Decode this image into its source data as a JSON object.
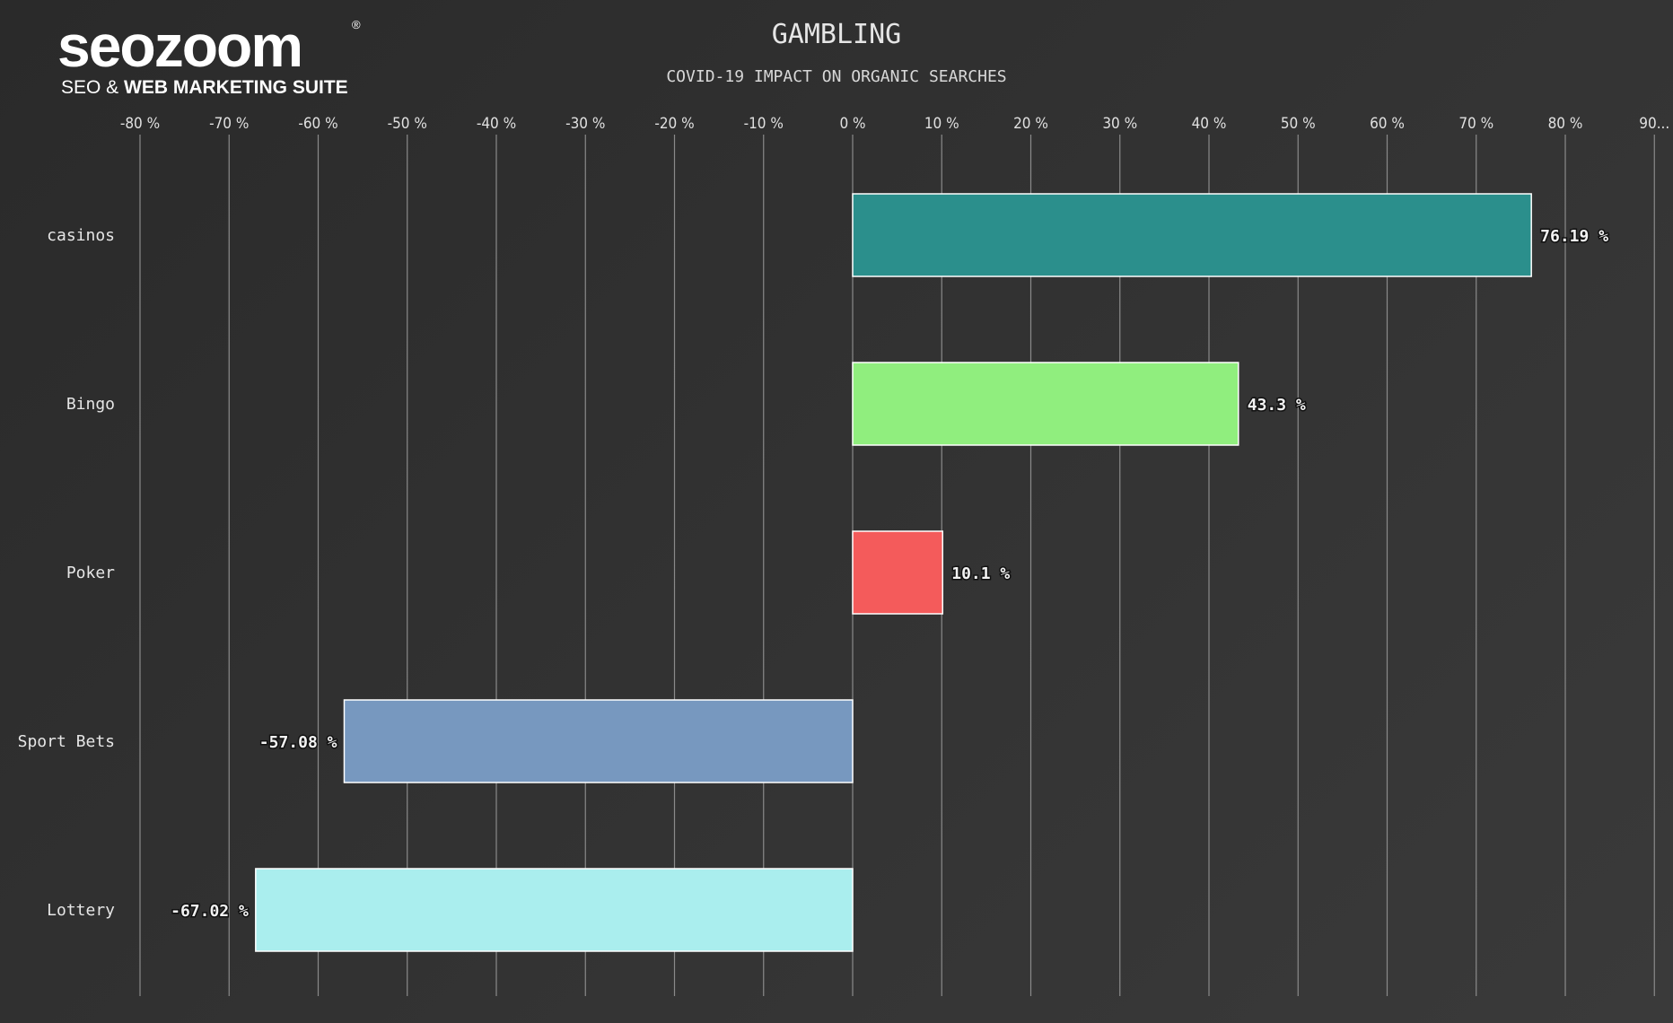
{
  "logo": {
    "brand": "seozoom",
    "registered": "®",
    "tagline_prefix": "SEO & ",
    "tagline_bold": "WEB MARKETING SUITE"
  },
  "chart_data": {
    "type": "bar",
    "orientation": "horizontal",
    "title": "GAMBLING",
    "subtitle": "COVID-19 IMPACT ON ORGANIC SEARCHES",
    "categories": [
      "casinos",
      "Bingo",
      "Poker",
      "Sport Bets",
      "Lottery"
    ],
    "values": [
      76.19,
      43.3,
      10.1,
      -57.08,
      -67.02
    ],
    "value_labels": [
      "76.19 %",
      "43.3 %",
      "10.1 %",
      "-57.08 %",
      "-67.02 %"
    ],
    "colors": [
      "#2b8f8c",
      "#90ee7e",
      "#f45b5b",
      "#7798bf",
      "#aaeeee"
    ],
    "xlim": [
      -80,
      90
    ],
    "x_ticks": [
      -80,
      -70,
      -60,
      -50,
      -40,
      -30,
      -20,
      -10,
      0,
      10,
      20,
      30,
      40,
      50,
      60,
      70,
      80,
      90
    ],
    "x_tick_labels": [
      "-80 %",
      "-70 %",
      "-60 %",
      "-50 %",
      "-40 %",
      "-30 %",
      "-20 %",
      "-10 %",
      "0 %",
      "10 %",
      "20 %",
      "30 %",
      "40 %",
      "50 %",
      "60 %",
      "70 %",
      "80 %",
      "90..."
    ],
    "axis_position": "top",
    "grid": true,
    "legend": "none"
  }
}
